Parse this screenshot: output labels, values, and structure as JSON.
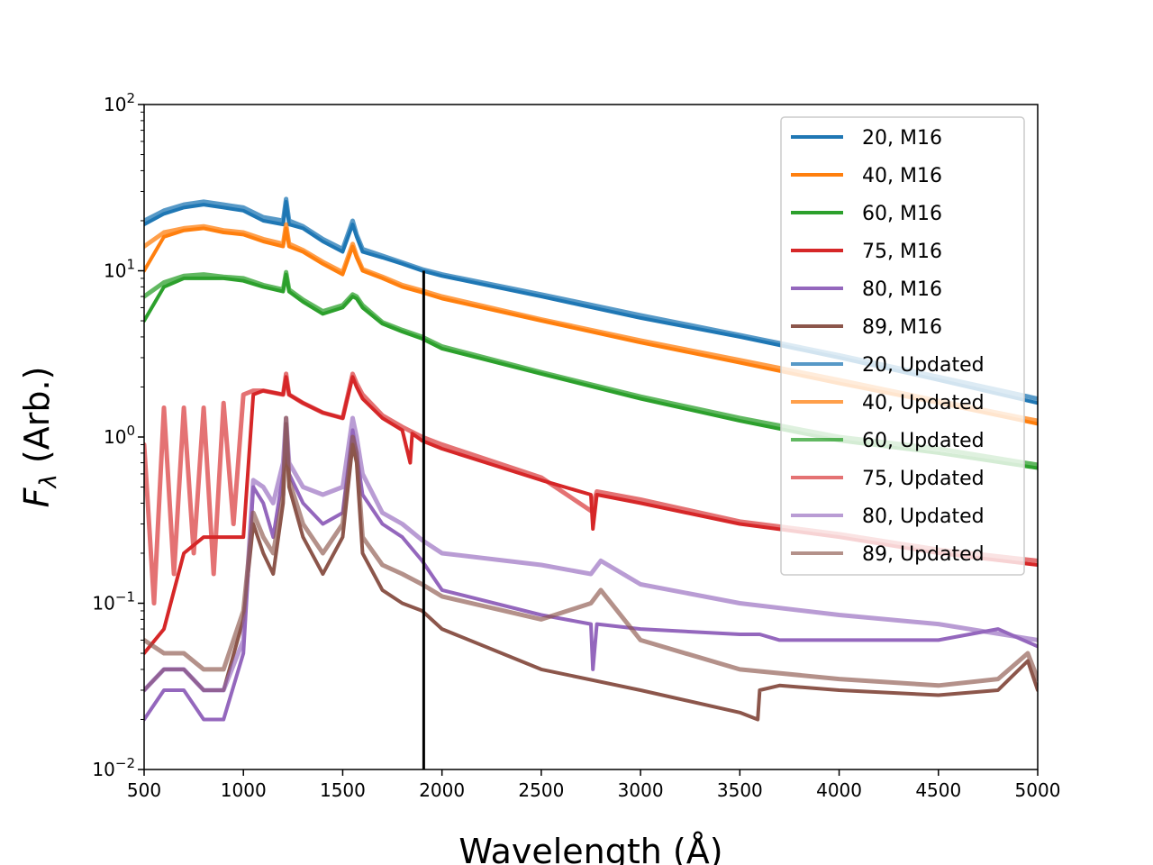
{
  "chart_data": {
    "type": "line",
    "xlabel": "Wavelength (Å)",
    "ylabel_main": "F",
    "ylabel_sub": "λ",
    "ylabel_rest": " (Arb.)",
    "xlim": [
      500,
      5000
    ],
    "ylim": [
      0.01,
      100
    ],
    "yscale": "log",
    "grid": false,
    "legend_position": "top-right",
    "x_ticks": [
      500,
      1000,
      1500,
      2000,
      2500,
      3000,
      3500,
      4000,
      4500,
      5000
    ],
    "y_ticks": [
      {
        "value": 0.01,
        "base": "10",
        "exp": "−2"
      },
      {
        "value": 0.1,
        "base": "10",
        "exp": "−1"
      },
      {
        "value": 1,
        "base": "10",
        "exp": "0"
      },
      {
        "value": 10,
        "base": "10",
        "exp": "1"
      },
      {
        "value": 100,
        "base": "10",
        "exp": "2"
      }
    ],
    "vline_x": 1908,
    "series": [
      {
        "name": "20, M16",
        "color": "#1f77b4",
        "opacity": 1.0,
        "width": 4,
        "x": [
          500,
          600,
          700,
          800,
          900,
          1000,
          1100,
          1200,
          1215,
          1230,
          1300,
          1400,
          1500,
          1550,
          1570,
          1600,
          1700,
          1800,
          1900,
          2000,
          2500,
          3000,
          3500,
          4000,
          4500,
          5000
        ],
        "y": [
          19,
          22,
          24,
          25,
          24,
          23,
          20,
          19,
          26,
          19,
          18,
          15,
          13,
          19,
          16,
          13,
          12,
          11,
          10,
          9.3,
          7.0,
          5.2,
          4.0,
          3.0,
          2.2,
          1.6
        ]
      },
      {
        "name": "40, M16",
        "color": "#ff7f0e",
        "opacity": 1.0,
        "width": 4,
        "x": [
          500,
          600,
          700,
          800,
          900,
          1000,
          1100,
          1200,
          1215,
          1230,
          1300,
          1400,
          1500,
          1550,
          1570,
          1600,
          1700,
          1800,
          1900,
          2000,
          2500,
          3000,
          3500,
          4000,
          4500,
          5000
        ],
        "y": [
          10,
          16,
          17.5,
          18,
          17,
          16.5,
          15,
          14,
          18,
          14,
          13,
          11,
          9.5,
          14,
          12,
          10,
          9.0,
          8.0,
          7.4,
          6.8,
          5.0,
          3.7,
          2.8,
          2.1,
          1.6,
          1.2
        ]
      },
      {
        "name": "60, M16",
        "color": "#2ca02c",
        "opacity": 1.0,
        "width": 4,
        "x": [
          500,
          600,
          700,
          800,
          900,
          1000,
          1100,
          1200,
          1215,
          1230,
          1300,
          1400,
          1500,
          1550,
          1570,
          1600,
          1700,
          1800,
          1900,
          2000,
          2500,
          3000,
          3500,
          4000,
          4500,
          5000
        ],
        "y": [
          5,
          8,
          9,
          9,
          9,
          8.7,
          8,
          7.5,
          9.5,
          7.5,
          6.5,
          5.5,
          6,
          7,
          6.8,
          6,
          4.8,
          4.3,
          3.9,
          3.4,
          2.4,
          1.7,
          1.25,
          0.95,
          0.8,
          0.65
        ]
      },
      {
        "name": "75, M16",
        "color": "#d62728",
        "opacity": 1.0,
        "width": 4,
        "x": [
          500,
          600,
          700,
          800,
          900,
          1000,
          1050,
          1100,
          1200,
          1215,
          1230,
          1300,
          1400,
          1500,
          1550,
          1570,
          1600,
          1700,
          1800,
          1840,
          1850,
          1900,
          2000,
          2500,
          2750,
          2760,
          2780,
          3000,
          3500,
          4000,
          4500,
          5000
        ],
        "y": [
          0.05,
          0.07,
          0.2,
          0.25,
          0.25,
          0.25,
          1.8,
          1.9,
          1.8,
          2.3,
          1.8,
          1.6,
          1.4,
          1.3,
          2.3,
          2.0,
          1.7,
          1.3,
          1.1,
          0.7,
          1.05,
          0.95,
          0.85,
          0.55,
          0.45,
          0.28,
          0.45,
          0.4,
          0.3,
          0.25,
          0.2,
          0.17
        ]
      },
      {
        "name": "80, M16",
        "color": "#9467bd",
        "opacity": 1.0,
        "width": 4,
        "x": [
          500,
          600,
          700,
          800,
          900,
          1000,
          1050,
          1100,
          1150,
          1200,
          1215,
          1230,
          1300,
          1400,
          1500,
          1550,
          1570,
          1600,
          1700,
          1800,
          1900,
          2000,
          2500,
          2750,
          2760,
          2780,
          3000,
          3500,
          3600,
          3700,
          3800,
          4000,
          4500,
          4800,
          5000
        ],
        "y": [
          0.02,
          0.03,
          0.03,
          0.02,
          0.02,
          0.05,
          0.5,
          0.4,
          0.25,
          0.6,
          1.2,
          0.6,
          0.4,
          0.3,
          0.35,
          1.1,
          0.8,
          0.45,
          0.3,
          0.25,
          0.18,
          0.12,
          0.085,
          0.075,
          0.04,
          0.075,
          0.07,
          0.065,
          0.065,
          0.06,
          0.06,
          0.06,
          0.06,
          0.07,
          0.055
        ]
      },
      {
        "name": "89, M16",
        "color": "#8c564b",
        "opacity": 1.0,
        "width": 4,
        "x": [
          500,
          600,
          700,
          800,
          900,
          1000,
          1050,
          1100,
          1150,
          1200,
          1215,
          1230,
          1300,
          1400,
          1500,
          1550,
          1570,
          1600,
          1700,
          1800,
          1900,
          2000,
          2500,
          3000,
          3500,
          3590,
          3600,
          3700,
          4000,
          4500,
          4800,
          4950,
          5000
        ],
        "y": [
          0.03,
          0.04,
          0.04,
          0.03,
          0.03,
          0.08,
          0.3,
          0.2,
          0.15,
          0.4,
          1.2,
          0.5,
          0.25,
          0.15,
          0.25,
          0.9,
          0.7,
          0.2,
          0.12,
          0.1,
          0.09,
          0.07,
          0.04,
          0.03,
          0.022,
          0.02,
          0.03,
          0.032,
          0.03,
          0.028,
          0.03,
          0.045,
          0.03
        ]
      },
      {
        "name": "20, Updated",
        "color": "#1f77b4",
        "opacity": 0.75,
        "width": 5,
        "x": [
          500,
          600,
          700,
          800,
          900,
          1000,
          1100,
          1200,
          1215,
          1230,
          1300,
          1400,
          1500,
          1550,
          1570,
          1600,
          1700,
          1800,
          1900,
          2000,
          2500,
          3000,
          3500,
          4000,
          4500,
          5000
        ],
        "y": [
          20,
          23,
          25,
          26,
          25,
          24,
          21,
          20,
          27,
          20,
          18.5,
          15.5,
          13.5,
          20,
          16.5,
          13.5,
          12.3,
          11.2,
          10.2,
          9.5,
          7.2,
          5.4,
          4.1,
          3.1,
          2.3,
          1.7
        ]
      },
      {
        "name": "40, Updated",
        "color": "#ff7f0e",
        "opacity": 0.75,
        "width": 5,
        "x": [
          500,
          600,
          700,
          800,
          900,
          1000,
          1100,
          1200,
          1215,
          1230,
          1300,
          1400,
          1500,
          1550,
          1570,
          1600,
          1700,
          1800,
          1900,
          2000,
          2500,
          3000,
          3500,
          4000,
          4500,
          5000
        ],
        "y": [
          14,
          17,
          18,
          18.5,
          17.5,
          17,
          15.5,
          14.5,
          19,
          14.5,
          13.3,
          11.3,
          9.8,
          14.5,
          12.3,
          10.2,
          9.2,
          8.2,
          7.6,
          7.0,
          5.1,
          3.8,
          2.9,
          2.2,
          1.65,
          1.25
        ]
      },
      {
        "name": "60, Updated",
        "color": "#2ca02c",
        "opacity": 0.75,
        "width": 5,
        "x": [
          500,
          600,
          700,
          800,
          900,
          1000,
          1100,
          1200,
          1215,
          1230,
          1300,
          1400,
          1500,
          1550,
          1570,
          1600,
          1700,
          1800,
          1900,
          2000,
          2500,
          3000,
          3500,
          4000,
          4500,
          5000
        ],
        "y": [
          7,
          8.5,
          9.3,
          9.5,
          9.2,
          9.0,
          8.2,
          7.7,
          9.8,
          7.7,
          6.7,
          5.7,
          6.2,
          7.2,
          7.0,
          6.2,
          4.9,
          4.4,
          4.0,
          3.5,
          2.45,
          1.75,
          1.3,
          1.0,
          0.85,
          0.68
        ]
      },
      {
        "name": "75, Updated",
        "color": "#d62728",
        "opacity": 0.65,
        "width": 5,
        "x": [
          500,
          550,
          600,
          650,
          700,
          750,
          800,
          850,
          900,
          950,
          1000,
          1050,
          1100,
          1200,
          1215,
          1230,
          1300,
          1400,
          1500,
          1550,
          1570,
          1600,
          1700,
          1800,
          1900,
          2000,
          2500,
          2750,
          2780,
          3000,
          3500,
          4000,
          4500,
          5000
        ],
        "y": [
          0.9,
          0.1,
          1.5,
          0.15,
          1.5,
          0.2,
          1.5,
          0.15,
          1.6,
          0.3,
          1.8,
          1.9,
          1.9,
          1.8,
          2.4,
          1.8,
          1.6,
          1.4,
          1.3,
          2.4,
          2.1,
          1.8,
          1.35,
          1.15,
          1.0,
          0.9,
          0.57,
          0.36,
          0.47,
          0.42,
          0.31,
          0.26,
          0.21,
          0.18
        ]
      },
      {
        "name": "80, Updated",
        "color": "#9467bd",
        "opacity": 0.65,
        "width": 5,
        "x": [
          500,
          600,
          700,
          800,
          900,
          1000,
          1050,
          1100,
          1150,
          1200,
          1215,
          1230,
          1300,
          1400,
          1500,
          1550,
          1570,
          1600,
          1700,
          1800,
          1900,
          2000,
          2500,
          2750,
          2800,
          3000,
          3500,
          4000,
          4500,
          5000
        ],
        "y": [
          0.03,
          0.04,
          0.04,
          0.03,
          0.03,
          0.06,
          0.55,
          0.5,
          0.4,
          0.7,
          1.3,
          0.7,
          0.5,
          0.45,
          0.5,
          1.3,
          1.0,
          0.6,
          0.35,
          0.3,
          0.24,
          0.2,
          0.17,
          0.15,
          0.18,
          0.13,
          0.1,
          0.085,
          0.075,
          0.06
        ]
      },
      {
        "name": "89, Updated",
        "color": "#8c564b",
        "opacity": 0.65,
        "width": 5,
        "x": [
          500,
          600,
          700,
          800,
          900,
          1000,
          1050,
          1100,
          1150,
          1200,
          1215,
          1230,
          1300,
          1400,
          1500,
          1550,
          1570,
          1600,
          1700,
          1800,
          1900,
          2000,
          2500,
          2750,
          2800,
          3000,
          3500,
          4000,
          4500,
          4800,
          4950,
          5000
        ],
        "y": [
          0.06,
          0.05,
          0.05,
          0.04,
          0.04,
          0.09,
          0.35,
          0.25,
          0.2,
          0.45,
          1.3,
          0.55,
          0.3,
          0.2,
          0.3,
          1.0,
          0.8,
          0.25,
          0.17,
          0.15,
          0.13,
          0.11,
          0.08,
          0.1,
          0.12,
          0.06,
          0.04,
          0.035,
          0.032,
          0.035,
          0.05,
          0.035
        ]
      }
    ]
  }
}
